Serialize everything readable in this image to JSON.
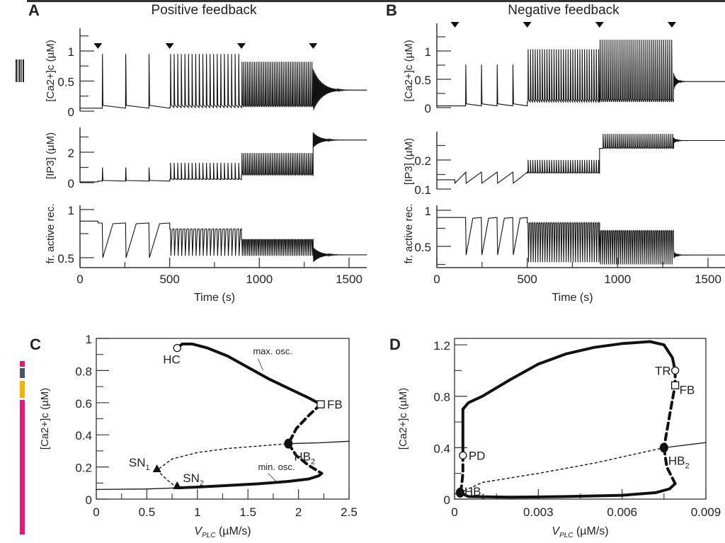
{
  "figure": {
    "panels": {
      "A": {
        "letter": "A",
        "title": "Positive feedback"
      },
      "B": {
        "letter": "B",
        "title": "Negative feedback"
      },
      "C": {
        "letter": "C"
      },
      "D": {
        "letter": "D"
      }
    },
    "side_markers": {
      "colors": [
        "#e6177a",
        "#4a5568",
        "#f5b400",
        "#e6177a"
      ]
    }
  },
  "chart_data": [
    {
      "id": "A-ca",
      "type": "line",
      "panel": "A",
      "title": "Positive feedback",
      "ylabel": "[Ca2+]c (µM)",
      "xlabel": "",
      "xlim": [
        0,
        1600
      ],
      "ylim": [
        0,
        1.3
      ],
      "yticks": [
        0,
        0.5,
        1
      ],
      "yticks_minor": [
        0.25,
        0.75,
        1.25
      ],
      "stimulus_markers_s": [
        100,
        500,
        900,
        1300
      ],
      "segments": [
        {
          "t0": 0,
          "t1": 100,
          "kind": "flat",
          "base": 0.05
        },
        {
          "t0": 100,
          "t1": 500,
          "kind": "spikes",
          "period": 130,
          "first": 125,
          "min": 0.05,
          "max": 0.95
        },
        {
          "t0": 500,
          "t1": 900,
          "kind": "spikes",
          "period": 20,
          "first": 505,
          "min": 0.06,
          "max": 0.95
        },
        {
          "t0": 900,
          "t1": 1300,
          "kind": "spikes",
          "period": 10,
          "first": 903,
          "min": 0.07,
          "max": 0.82
        },
        {
          "t0": 1300,
          "t1": 1600,
          "kind": "damped",
          "center": 0.35,
          "amp": 0.35,
          "tau": 50
        }
      ]
    },
    {
      "id": "A-ip3",
      "type": "line",
      "panel": "A",
      "ylabel": "[IP3] (µM)",
      "xlim": [
        0,
        1600
      ],
      "ylim": [
        0,
        3.5
      ],
      "yticks": [
        0,
        2
      ],
      "yticks_minor": [
        1,
        3
      ],
      "segments": [
        {
          "t0": 0,
          "t1": 100,
          "kind": "flat",
          "base": 0.05
        },
        {
          "t0": 100,
          "t1": 500,
          "kind": "spikes",
          "period": 130,
          "first": 125,
          "min": 0.1,
          "max": 1.0
        },
        {
          "t0": 500,
          "t1": 900,
          "kind": "spikes",
          "period": 20,
          "first": 505,
          "min": 0.2,
          "max": 1.3
        },
        {
          "t0": 900,
          "t1": 1300,
          "kind": "spikes",
          "period": 10,
          "first": 903,
          "min": 0.5,
          "max": 1.95
        },
        {
          "t0": 1300,
          "t1": 1600,
          "kind": "damped",
          "center": 2.8,
          "amp": 0.5,
          "tau": 40
        }
      ]
    },
    {
      "id": "A-rec",
      "type": "line",
      "panel": "A",
      "ylabel": "fr. active rec.",
      "xlabel": "Time (s)",
      "xlim": [
        0,
        1600
      ],
      "ylim": [
        0.42,
        1.05
      ],
      "yticks": [
        0.5,
        1
      ],
      "yticks_minor": [
        0.75
      ],
      "xticks": [
        0,
        500,
        1000,
        1500
      ],
      "xticks_minor": [
        250,
        750,
        1250
      ],
      "segments": [
        {
          "t0": 0,
          "t1": 100,
          "kind": "flat",
          "base": 0.88
        },
        {
          "t0": 100,
          "t1": 500,
          "kind": "dips",
          "period": 130,
          "first": 125,
          "min": 0.5,
          "max": 0.86
        },
        {
          "t0": 500,
          "t1": 900,
          "kind": "dips",
          "period": 20,
          "first": 505,
          "min": 0.52,
          "max": 0.8
        },
        {
          "t0": 900,
          "t1": 1300,
          "kind": "dips",
          "period": 10,
          "first": 903,
          "min": 0.52,
          "max": 0.69
        },
        {
          "t0": 1300,
          "t1": 1600,
          "kind": "damped",
          "center": 0.53,
          "amp": 0.08,
          "tau": 40
        }
      ]
    },
    {
      "id": "B-ca",
      "type": "line",
      "panel": "B",
      "title": "Negative feedback",
      "ylabel": "[Ca2+]c (µM)",
      "xlim": [
        0,
        1600
      ],
      "ylim": [
        0,
        1.4
      ],
      "yticks": [
        0,
        0.5,
        1
      ],
      "yticks_minor": [
        0.25,
        0.75,
        1.25
      ],
      "stimulus_markers_s": [
        100,
        500,
        900,
        1300
      ],
      "segments": [
        {
          "t0": 0,
          "t1": 100,
          "kind": "flat",
          "base": 0.03
        },
        {
          "t0": 100,
          "t1": 500,
          "kind": "spikes",
          "period": 87,
          "first": 160,
          "min": 0.03,
          "max": 0.76
        },
        {
          "t0": 500,
          "t1": 900,
          "kind": "spikes",
          "period": 13,
          "first": 505,
          "min": 0.1,
          "max": 1.03
        },
        {
          "t0": 900,
          "t1": 1310,
          "kind": "spikes",
          "period": 11,
          "first": 903,
          "min": 0.1,
          "max": 1.2
        },
        {
          "t0": 1310,
          "t1": 1600,
          "kind": "damped",
          "center": 0.46,
          "amp": 0.15,
          "tau": 15
        }
      ]
    },
    {
      "id": "B-ip3",
      "type": "line",
      "panel": "B",
      "ylabel": "[IP3] (µM)",
      "xlim": [
        0,
        1600
      ],
      "ylim": [
        0.1,
        0.3
      ],
      "yticks": [
        0.1,
        0.2
      ],
      "yticks_minor": [
        0.15,
        0.25
      ],
      "segments": [
        {
          "t0": 0,
          "t1": 100,
          "kind": "flat",
          "base": 0.132
        },
        {
          "t0": 100,
          "t1": 500,
          "kind": "sawtooth",
          "period": 87,
          "first": 160,
          "min": 0.12,
          "max": 0.158
        },
        {
          "t0": 500,
          "t1": 900,
          "kind": "spikes",
          "period": 13,
          "first": 505,
          "min": 0.155,
          "max": 0.2
        },
        {
          "t0": 900,
          "t1": 1310,
          "kind": "spikes",
          "period": 11,
          "first": 920,
          "min": 0.24,
          "max": 0.29
        },
        {
          "t0": 1310,
          "t1": 1600,
          "kind": "damped",
          "center": 0.267,
          "amp": 0.01,
          "tau": 15
        }
      ]
    },
    {
      "id": "B-rec",
      "type": "line",
      "panel": "B",
      "ylabel": "fr. active rec.",
      "xlabel": "Time (s)",
      "xlim": [
        0,
        1600
      ],
      "ylim": [
        0.2,
        1.05
      ],
      "yticks": [
        0.5,
        1
      ],
      "yticks_minor": [
        0.25,
        0.75
      ],
      "xticks": [
        0,
        500,
        1000,
        1500
      ],
      "xticks_minor": [
        250,
        750,
        1250
      ],
      "segments": [
        {
          "t0": 0,
          "t1": 100,
          "kind": "flat",
          "base": 0.9
        },
        {
          "t0": 100,
          "t1": 500,
          "kind": "dips",
          "period": 87,
          "first": 160,
          "min": 0.38,
          "max": 0.9
        },
        {
          "t0": 500,
          "t1": 900,
          "kind": "dips",
          "period": 13,
          "first": 505,
          "min": 0.28,
          "max": 0.83
        },
        {
          "t0": 900,
          "t1": 1310,
          "kind": "dips",
          "period": 11,
          "first": 903,
          "min": 0.25,
          "max": 0.72
        },
        {
          "t0": 1310,
          "t1": 1600,
          "kind": "damped",
          "center": 0.38,
          "amp": 0.05,
          "tau": 15
        }
      ]
    },
    {
      "id": "C",
      "type": "line",
      "panel": "C",
      "xlabel": "VPLC (µM/s)",
      "xlabel_main": "V",
      "xlabel_sub": "PLC",
      "xlabel_unit": " (µM/s)",
      "ylabel": "[Ca2+]c (µM)",
      "xlim": [
        0,
        2.5
      ],
      "ylim": [
        0,
        1
      ],
      "xticks": [
        0,
        0.5,
        1,
        1.5,
        2,
        2.5
      ],
      "xtick_labels": [
        "0",
        "0.5",
        "1",
        "1.5",
        "2",
        "2.5"
      ],
      "xticks_minor": [
        0.25,
        0.75,
        1.25,
        1.75,
        2.25
      ],
      "yticks": [
        0,
        0.2,
        0.4,
        0.6,
        0.8,
        1
      ],
      "ytick_labels": [
        "0",
        "0.2",
        "0.4",
        "0.6",
        "0.8",
        "1"
      ],
      "yticks_minor": [
        0.1,
        0.3,
        0.5,
        0.7,
        0.9
      ],
      "series": [
        {
          "name": "stable steady state (low)",
          "style": "solid-thin",
          "points": [
            [
              0,
              0.06
            ],
            [
              0.5,
              0.063
            ],
            [
              0.8,
              0.07
            ]
          ]
        },
        {
          "name": "unstable steady state",
          "style": "dotted",
          "points": [
            [
              0.8,
              0.07
            ],
            [
              0.7,
              0.12
            ],
            [
              0.6,
              0.18
            ],
            [
              0.75,
              0.25
            ],
            [
              1.0,
              0.29
            ],
            [
              1.3,
              0.315
            ],
            [
              1.6,
              0.33
            ],
            [
              1.9,
              0.345
            ]
          ]
        },
        {
          "name": "stable steady state (high)",
          "style": "solid-thin",
          "points": [
            [
              1.9,
              0.345
            ],
            [
              2.2,
              0.35
            ],
            [
              2.5,
              0.36
            ]
          ]
        },
        {
          "name": "max. osc.",
          "style": "solid-thick",
          "points": [
            [
              0.8,
              0.94
            ],
            [
              0.85,
              0.965
            ],
            [
              0.95,
              0.965
            ],
            [
              1.1,
              0.94
            ],
            [
              1.3,
              0.89
            ],
            [
              1.5,
              0.82
            ],
            [
              1.7,
              0.75
            ],
            [
              1.9,
              0.69
            ],
            [
              2.1,
              0.63
            ],
            [
              2.22,
              0.59
            ]
          ]
        },
        {
          "name": "min. osc.",
          "style": "solid-thick",
          "points": [
            [
              0.8,
              0.07
            ],
            [
              1.0,
              0.075
            ],
            [
              1.3,
              0.085
            ],
            [
              1.6,
              0.095
            ],
            [
              1.9,
              0.11
            ],
            [
              2.1,
              0.125
            ],
            [
              2.2,
              0.145
            ],
            [
              2.23,
              0.16
            ]
          ]
        },
        {
          "name": "unstable osc. (max)",
          "style": "dashed-thick",
          "points": [
            [
              2.22,
              0.59
            ],
            [
              2.1,
              0.52
            ],
            [
              1.98,
              0.44
            ],
            [
              1.9,
              0.345
            ]
          ]
        },
        {
          "name": "unstable osc. (min)",
          "style": "dashed-thick",
          "points": [
            [
              1.9,
              0.345
            ],
            [
              1.98,
              0.27
            ],
            [
              2.1,
              0.21
            ],
            [
              2.23,
              0.16
            ]
          ]
        }
      ],
      "annotations": [
        {
          "label": "HC",
          "x": 0.8,
          "y": 0.94,
          "marker": "open-circle"
        },
        {
          "label": "FB",
          "x": 2.22,
          "y": 0.59,
          "marker": "open-square"
        },
        {
          "label": "HB",
          "sub": "2",
          "x": 1.9,
          "y": 0.345,
          "marker": "filled-circle"
        },
        {
          "label": "SN",
          "sub": "1",
          "x": 0.6,
          "y": 0.185,
          "marker": "filled-triangle"
        },
        {
          "label": "SN",
          "sub": "2",
          "x": 0.8,
          "y": 0.08,
          "marker": "filled-triangle"
        },
        {
          "label": "max. osc.",
          "x": 1.55,
          "y": 0.9,
          "marker": "none"
        },
        {
          "label": "min. osc.",
          "x": 1.6,
          "y": 0.18,
          "marker": "none"
        }
      ]
    },
    {
      "id": "D",
      "type": "line",
      "panel": "D",
      "xlabel": "VPLC (µM/s)",
      "xlabel_main": "V",
      "xlabel_sub": "PLC",
      "xlabel_unit": " (µM/s)",
      "ylabel": "[Ca2+]c (µM)",
      "xlim": [
        0,
        0.009
      ],
      "ylim": [
        0,
        1.25
      ],
      "xticks": [
        0,
        0.003,
        0.006,
        0.009
      ],
      "xtick_labels": [
        "0",
        "0.003",
        "0.006",
        "0.009"
      ],
      "xticks_minor": [
        0.0015,
        0.0045,
        0.0075
      ],
      "yticks": [
        0,
        0.4,
        0.8,
        1.2
      ],
      "ytick_labels": [
        "0",
        "0.4",
        "0.8",
        "1.2"
      ],
      "yticks_minor": [
        0.2,
        0.6,
        1.0
      ],
      "series": [
        {
          "name": "stable steady state (low)",
          "style": "solid-thin",
          "points": [
            [
              0,
              0.04
            ],
            [
              0.0002,
              0.05
            ]
          ]
        },
        {
          "name": "unstable steady state",
          "style": "dotted",
          "points": [
            [
              0.0002,
              0.05
            ],
            [
              0.001,
              0.13
            ],
            [
              0.003,
              0.2
            ],
            [
              0.005,
              0.28
            ],
            [
              0.0075,
              0.4
            ]
          ]
        },
        {
          "name": "stable steady state (high)",
          "style": "solid-thin",
          "points": [
            [
              0.0075,
              0.4
            ],
            [
              0.009,
              0.44
            ]
          ]
        },
        {
          "name": "max. osc.",
          "style": "solid-thick",
          "points": [
            [
              0.0003,
              0.35
            ],
            [
              0.0003,
              0.7
            ],
            [
              0.0005,
              0.75
            ],
            [
              0.001,
              0.8
            ],
            [
              0.002,
              0.93
            ],
            [
              0.003,
              1.05
            ],
            [
              0.004,
              1.13
            ],
            [
              0.005,
              1.18
            ],
            [
              0.006,
              1.21
            ],
            [
              0.007,
              1.225
            ],
            [
              0.0075,
              1.2
            ],
            [
              0.0078,
              1.1
            ],
            [
              0.0079,
              1.0
            ]
          ]
        },
        {
          "name": "min. osc.",
          "style": "solid-thick",
          "points": [
            [
              0.0002,
              0.05
            ],
            [
              0.0005,
              0.02
            ],
            [
              0.002,
              0.015
            ],
            [
              0.004,
              0.02
            ],
            [
              0.006,
              0.03
            ],
            [
              0.0072,
              0.05
            ],
            [
              0.0077,
              0.08
            ],
            [
              0.0079,
              0.12
            ]
          ]
        },
        {
          "name": "unstable osc. (PD branch)",
          "style": "dashed-thick",
          "points": [
            [
              0.0003,
              0.35
            ],
            [
              0.0003,
              0.2
            ],
            [
              0.00025,
              0.1
            ],
            [
              0.0002,
              0.05
            ]
          ]
        },
        {
          "name": "unstable osc. (upper)",
          "style": "dashed-thick",
          "points": [
            [
              0.0079,
              1.0
            ],
            [
              0.0079,
              0.89
            ],
            [
              0.0077,
              0.65
            ],
            [
              0.0075,
              0.4
            ]
          ]
        },
        {
          "name": "unstable osc. (lower)",
          "style": "dashed-thick",
          "points": [
            [
              0.0075,
              0.4
            ],
            [
              0.0076,
              0.25
            ],
            [
              0.0079,
              0.12
            ]
          ]
        }
      ],
      "annotations": [
        {
          "label": "TR",
          "x": 0.0079,
          "y": 1.0,
          "marker": "open-circle"
        },
        {
          "label": "FB",
          "x": 0.0079,
          "y": 0.885,
          "marker": "open-square"
        },
        {
          "label": "PD",
          "x": 0.0003,
          "y": 0.34,
          "marker": "open-circle"
        },
        {
          "label": "HB",
          "sub": "2",
          "x": 0.0075,
          "y": 0.4,
          "marker": "filled-circle"
        },
        {
          "label": "HB",
          "sub": "1",
          "x": 0.0002,
          "y": 0.05,
          "marker": "filled-circle"
        }
      ]
    }
  ]
}
